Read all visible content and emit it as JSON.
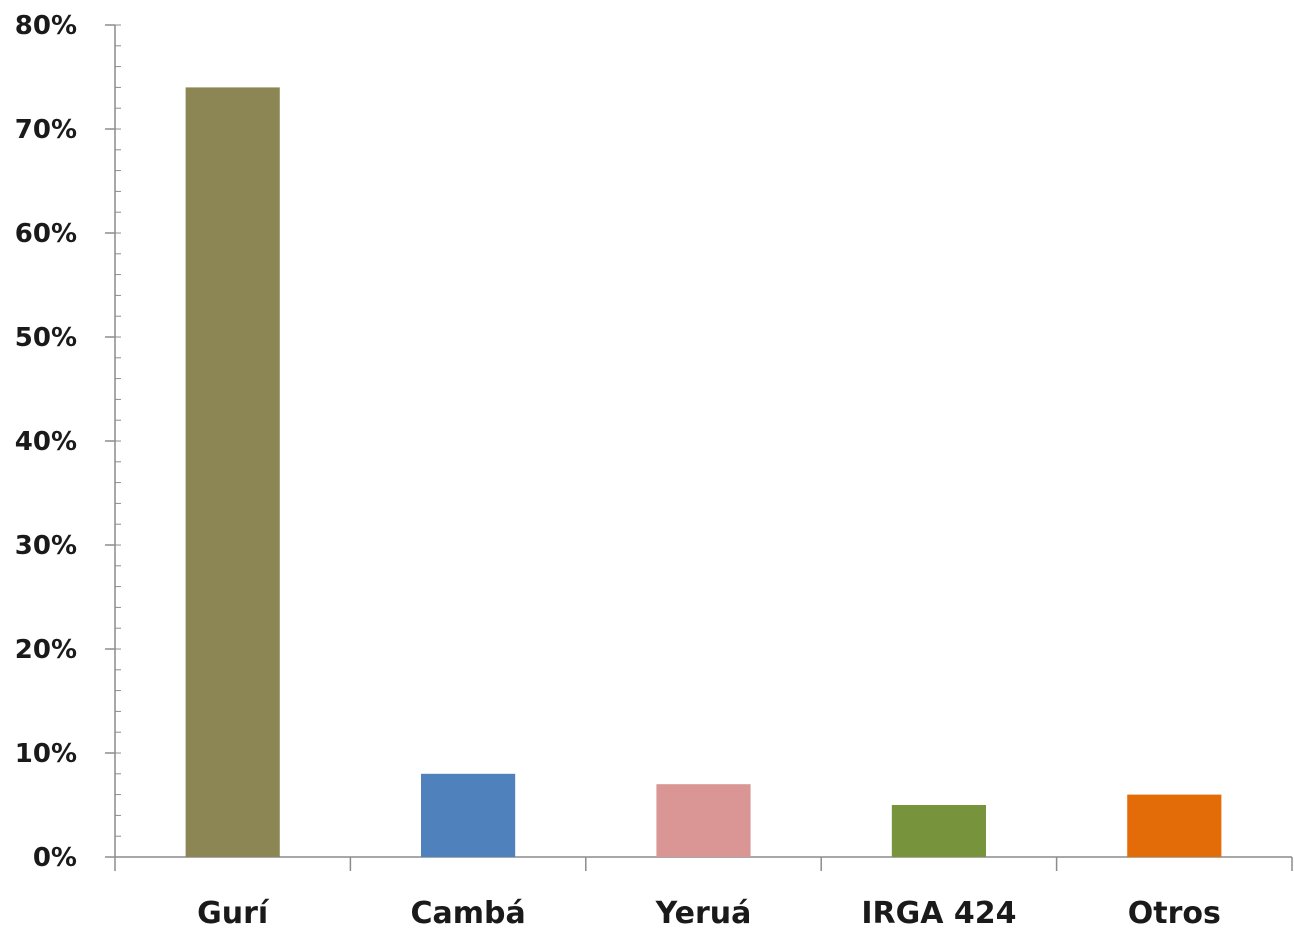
{
  "chart_data": {
    "type": "bar",
    "title": "",
    "xlabel": "",
    "ylabel": "",
    "categories": [
      "Gurí",
      "Cambá",
      "Yeruá",
      "IRGA 424",
      "Otros"
    ],
    "values": [
      74,
      8,
      7,
      5,
      6
    ],
    "value_unit": "%",
    "ylim": [
      0,
      80
    ],
    "yticks": [
      0,
      10,
      20,
      30,
      40,
      50,
      60,
      70,
      80
    ],
    "ytick_labels": [
      "0%",
      "10%",
      "20%",
      "30%",
      "40%",
      "50%",
      "60%",
      "70%",
      "80%"
    ],
    "minor_tick_step": 2,
    "bar_colors": [
      "#8b8653",
      "#4f81bd",
      "#d99694",
      "#77933c",
      "#e36c09"
    ],
    "grid": false,
    "legend": "none"
  }
}
